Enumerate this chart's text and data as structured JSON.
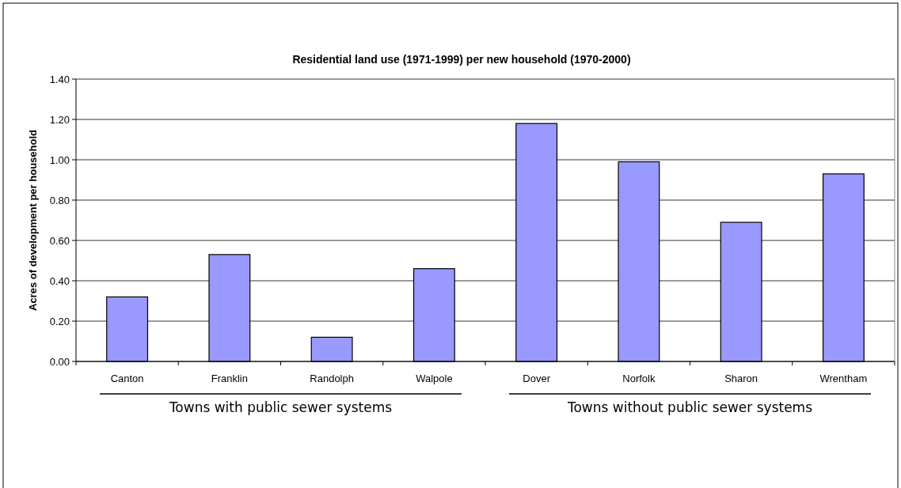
{
  "chart_data": {
    "type": "bar",
    "title": "Residential land use (1971-1999) per new household (1970-2000)",
    "ylabel": "Acres of development per household",
    "categories": [
      "Canton",
      "Franklin",
      "Randolph",
      "Walpole",
      "Dover",
      "Norfolk",
      "Sharon",
      "Wrentham"
    ],
    "values": [
      0.32,
      0.53,
      0.12,
      0.46,
      1.18,
      0.99,
      0.69,
      0.93
    ],
    "color": "#9999ff",
    "ylim": [
      0,
      1.4
    ],
    "yticks": [
      {
        "value": 0,
        "label": "0.00"
      },
      {
        "value": 0.2,
        "label": "0.20"
      },
      {
        "value": 0.4,
        "label": "0.40"
      },
      {
        "value": 0.6,
        "label": "0.60"
      },
      {
        "value": 0.8,
        "label": "0.80"
      },
      {
        "value": 1,
        "label": "1.00"
      },
      {
        "value": 1.2,
        "label": "1.20"
      },
      {
        "value": 1.4,
        "label": "1.40"
      }
    ],
    "grid": "y",
    "annotations": [
      "Towns with public sewer systems",
      "Towns without public sewer systems"
    ]
  }
}
